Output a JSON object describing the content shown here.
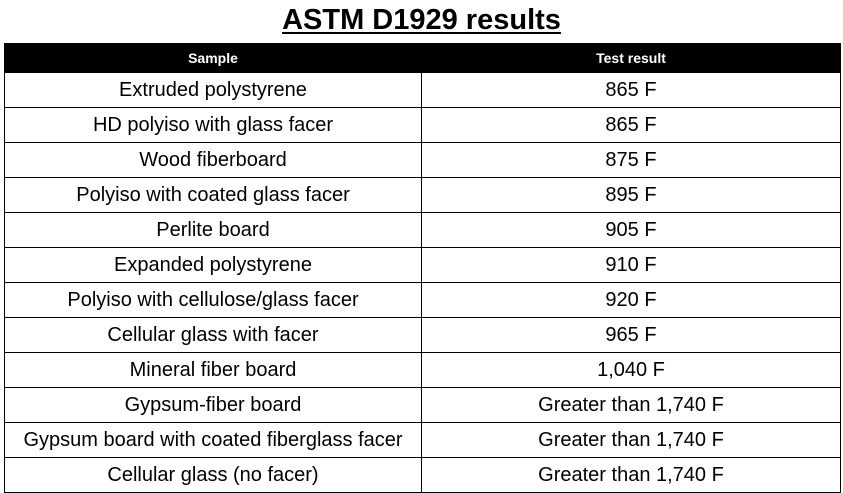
{
  "title": "ASTM D1929 results",
  "table": {
    "headers": [
      "Sample",
      "Test result"
    ],
    "rows": [
      {
        "sample": "Extruded polystyrene",
        "result": "865 F"
      },
      {
        "sample": "HD polyiso with glass facer",
        "result": "865 F"
      },
      {
        "sample": "Wood fiberboard",
        "result": "875 F"
      },
      {
        "sample": "Polyiso with coated glass facer",
        "result": "895 F"
      },
      {
        "sample": "Perlite board",
        "result": "905 F"
      },
      {
        "sample": "Expanded polystyrene",
        "result": "910 F"
      },
      {
        "sample": "Polyiso with cellulose/glass facer",
        "result": "920 F"
      },
      {
        "sample": "Cellular glass with facer",
        "result": "965 F"
      },
      {
        "sample": "Mineral fiber board",
        "result": "1,040 F"
      },
      {
        "sample": "Gypsum-fiber board",
        "result": "Greater than 1,740 F"
      },
      {
        "sample": "Gypsum board with coated fiberglass facer",
        "result": "Greater than 1,740 F"
      },
      {
        "sample": "Cellular glass (no facer)",
        "result": "Greater than 1,740 F"
      }
    ]
  },
  "colors": {
    "header_background": "#000000",
    "header_text": "#ffffff",
    "border": "#000000"
  }
}
